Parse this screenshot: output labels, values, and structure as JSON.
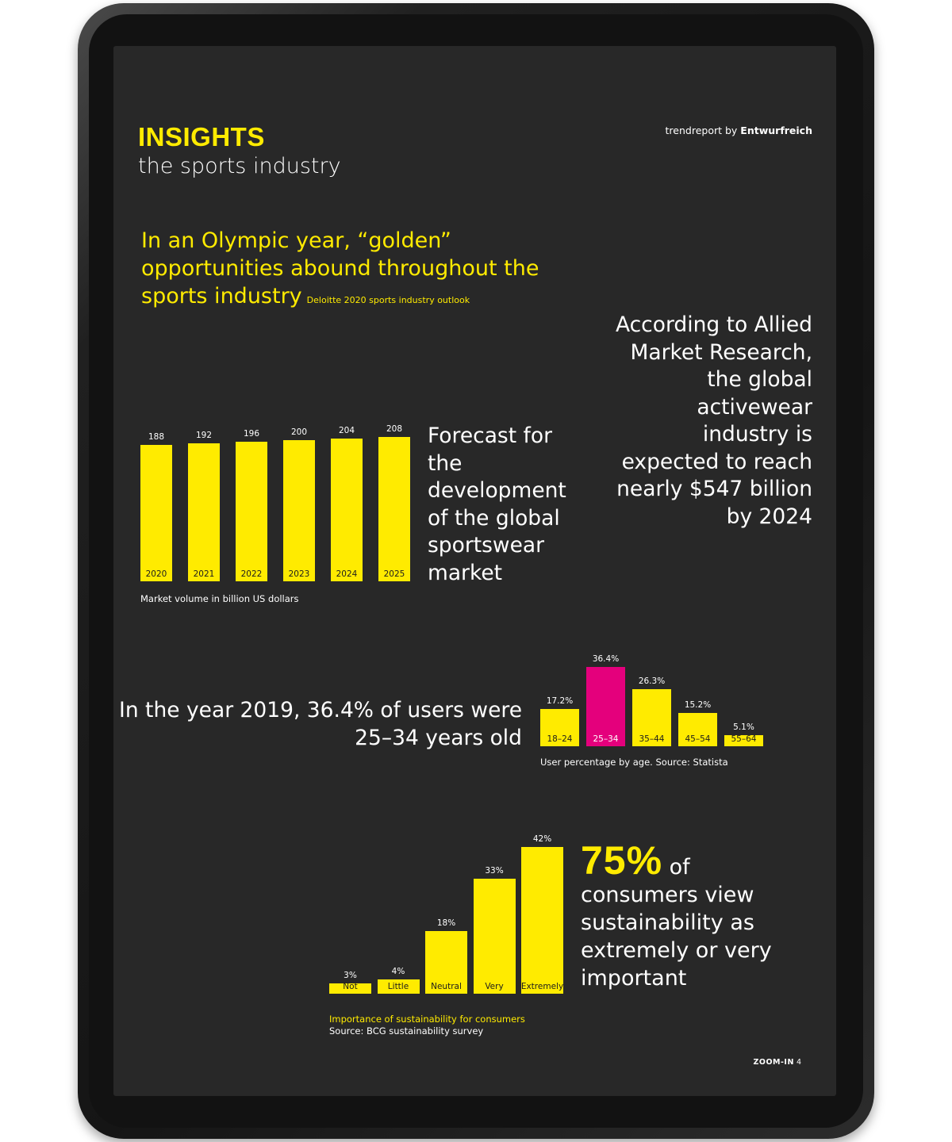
{
  "header": {
    "title": "INSIGHTS",
    "subtitle": "the sports industry",
    "brand_prefix": "trendreport by",
    "brand_name": "Entwurfreich"
  },
  "headline": {
    "text": "In an Olympic year, “golden” opportunities abound throughout the sports industry",
    "source": "Deloitte 2020 sports industry outlook"
  },
  "allied_text": "According to Allied Market Research, the global activewear industry is expected to reach nearly $547 billion by 2024",
  "forecast_text": "Forecast for the development of the global sportswear market",
  "year2019_text": "In the year 2019, 36.4% of users were 25–34 years old",
  "stat75": {
    "pct": "75%",
    "text_after": " of consumers view sustainability as extremely or very important"
  },
  "footer": {
    "label": "ZOOM-IN",
    "page": "4"
  },
  "colors": {
    "accent": "#ffeb00",
    "highlight": "#e4007c",
    "background": "#282828"
  },
  "chart_data": [
    {
      "type": "bar",
      "categories": [
        "2020",
        "2021",
        "2022",
        "2023",
        "2024",
        "2025"
      ],
      "values": [
        188,
        192,
        196,
        200,
        204,
        208
      ],
      "value_labels": [
        "188",
        "192",
        "196",
        "200",
        "204",
        "208"
      ],
      "caption": "Market volume in billion US dollars"
    },
    {
      "type": "bar",
      "categories": [
        "18–24",
        "25–34",
        "35–44",
        "45–54",
        "55–64"
      ],
      "values": [
        17.2,
        36.4,
        26.3,
        15.2,
        5.1
      ],
      "value_labels": [
        "17.2%",
        "36.4%",
        "26.3%",
        "15.2%",
        "5.1%"
      ],
      "highlight_index": 1,
      "caption": "User percentage by age. Source: Statista"
    },
    {
      "type": "bar",
      "categories": [
        "Not",
        "Little",
        "Neutral",
        "Very",
        "Extremely"
      ],
      "values": [
        3,
        4,
        18,
        33,
        42
      ],
      "value_labels": [
        "3%",
        "4%",
        "18%",
        "33%",
        "42%"
      ],
      "caption": "Importance of sustainability for consumers",
      "source": "Source: BCG sustainability survey"
    }
  ]
}
